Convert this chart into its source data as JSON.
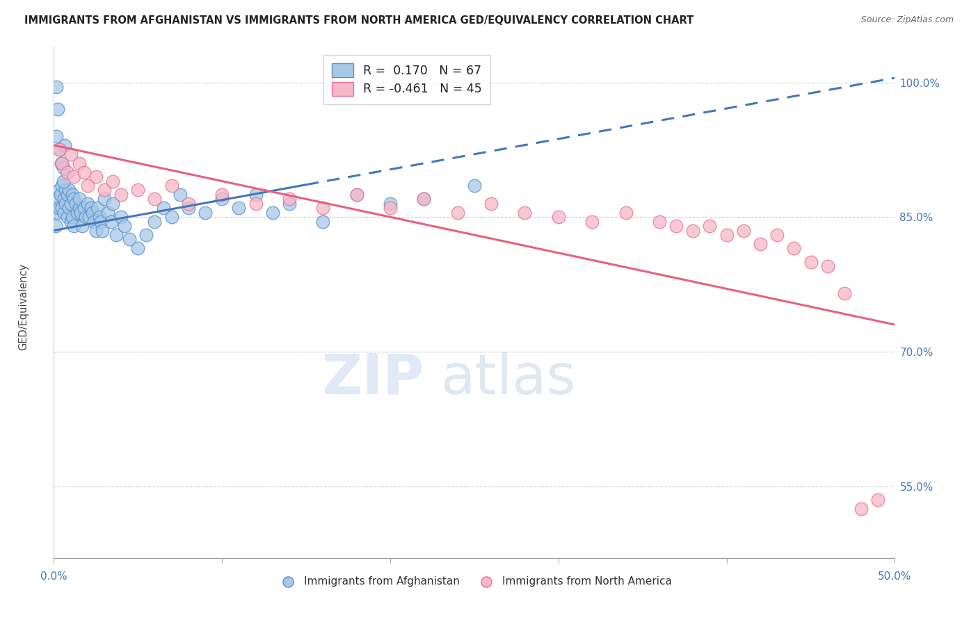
{
  "title": "IMMIGRANTS FROM AFGHANISTAN VS IMMIGRANTS FROM NORTH AMERICA GED/EQUIVALENCY CORRELATION CHART",
  "source": "Source: ZipAtlas.com",
  "ylabel": "GED/Equivalency",
  "blue_color": "#A8C8E8",
  "blue_edge_color": "#5590CC",
  "pink_color": "#F5B8C8",
  "pink_edge_color": "#E87090",
  "blue_line_color": "#4477BB",
  "pink_line_color": "#E86080",
  "watermark_zip": "ZIP",
  "watermark_atlas": "atlas",
  "afghanistan_x": [
    0.1,
    0.1,
    0.2,
    0.2,
    0.3,
    0.3,
    0.4,
    0.5,
    0.5,
    0.6,
    0.6,
    0.7,
    0.7,
    0.8,
    0.8,
    0.9,
    0.9,
    1.0,
    1.0,
    1.1,
    1.1,
    1.2,
    1.2,
    1.3,
    1.4,
    1.5,
    1.5,
    1.6,
    1.7,
    1.8,
    1.9,
    2.0,
    2.1,
    2.2,
    2.3,
    2.4,
    2.5,
    2.6,
    2.7,
    2.8,
    2.9,
    3.0,
    3.2,
    3.4,
    3.5,
    3.7,
    4.0,
    4.2,
    4.5,
    5.0,
    5.5,
    6.0,
    6.5,
    7.0,
    7.5,
    8.0,
    9.0,
    10.0,
    11.0,
    12.0,
    13.0,
    14.0,
    16.0,
    18.0,
    20.0,
    22.0,
    25.0
  ],
  "afghanistan_y": [
    84.0,
    86.0,
    85.5,
    87.0,
    86.0,
    88.0,
    87.5,
    86.0,
    88.5,
    85.5,
    87.0,
    86.5,
    88.0,
    85.0,
    87.5,
    86.0,
    88.0,
    84.5,
    86.5,
    85.0,
    87.5,
    84.0,
    87.0,
    86.5,
    85.5,
    86.0,
    87.0,
    85.5,
    84.0,
    86.0,
    85.0,
    86.5,
    85.0,
    86.0,
    85.5,
    84.5,
    83.5,
    86.0,
    85.0,
    84.5,
    83.5,
    87.0,
    85.5,
    84.5,
    86.5,
    83.0,
    85.0,
    84.0,
    82.5,
    81.5,
    83.0,
    84.5,
    86.0,
    85.0,
    87.5,
    86.0,
    85.5,
    87.0,
    86.0,
    87.5,
    85.5,
    86.5,
    84.5,
    87.5,
    86.5,
    87.0,
    88.5
  ],
  "afghanistan_x_extra": [
    0.15,
    0.25,
    0.15,
    0.35,
    0.45,
    0.55,
    0.55,
    0.65
  ],
  "afghanistan_y_extra": [
    99.5,
    97.0,
    94.0,
    92.5,
    91.0,
    90.5,
    89.0,
    93.0
  ],
  "north_america_x": [
    0.3,
    0.5,
    0.8,
    1.0,
    1.2,
    1.5,
    1.8,
    2.0,
    2.5,
    3.0,
    3.5,
    4.0,
    5.0,
    6.0,
    7.0,
    8.0,
    10.0,
    12.0,
    14.0,
    16.0,
    18.0,
    20.0,
    22.0,
    24.0,
    26.0,
    28.0,
    30.0,
    32.0,
    34.0,
    36.0,
    37.0,
    38.0,
    39.0,
    40.0,
    41.0,
    42.0,
    43.0,
    44.0,
    45.0,
    46.0,
    47.0,
    48.0,
    49.0
  ],
  "north_america_y": [
    92.5,
    91.0,
    90.0,
    92.0,
    89.5,
    91.0,
    90.0,
    88.5,
    89.5,
    88.0,
    89.0,
    87.5,
    88.0,
    87.0,
    88.5,
    86.5,
    87.5,
    86.5,
    87.0,
    86.0,
    87.5,
    86.0,
    87.0,
    85.5,
    86.5,
    85.5,
    85.0,
    84.5,
    85.5,
    84.5,
    84.0,
    83.5,
    84.0,
    83.0,
    83.5,
    82.0,
    83.0,
    81.5,
    80.0,
    79.5,
    76.5,
    52.5,
    53.5
  ],
  "blue_line_x0": 0,
  "blue_line_y0": 83.5,
  "blue_line_x1": 50,
  "blue_line_y1": 100.5,
  "pink_line_x0": 0,
  "pink_line_y0": 93.0,
  "pink_line_x1": 50,
  "pink_line_y1": 73.0,
  "xlim": [
    0,
    50
  ],
  "ylim": [
    47,
    104
  ],
  "yticks": [
    55,
    70,
    85,
    100
  ],
  "ytick_labels": [
    "55.0%",
    "70.0%",
    "85.0%",
    "100.0%"
  ]
}
